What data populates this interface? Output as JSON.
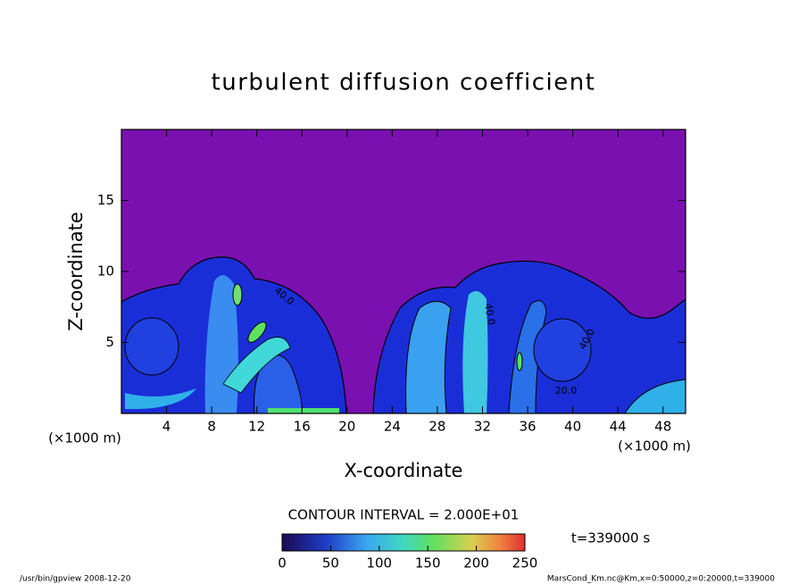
{
  "chart_data": {
    "type": "contour",
    "title": "turbulent diffusion coefficient",
    "x_label": "X-coordinate",
    "y_label": "Z-coordinate",
    "x_unit": "(×1000 m)",
    "y_unit": "(×1000 m)",
    "xlim": [
      0,
      50
    ],
    "ylim": [
      0,
      20
    ],
    "xticks": [
      4,
      8,
      12,
      16,
      20,
      24,
      28,
      32,
      36,
      40,
      44,
      48
    ],
    "yticks": [
      5,
      10,
      15
    ],
    "contour_interval": "CONTOUR INTERVAL = 2.000E+01",
    "time_label": "t=339000 s",
    "colorbar": {
      "lim": [
        0,
        250
      ],
      "ticks": [
        0,
        50,
        100,
        150,
        200,
        250
      ]
    },
    "contour_labels": [
      "40.0",
      "40.0",
      "40.0",
      "20.0"
    ]
  },
  "footer": {
    "left": "/usr/bin/gpview   2008-12-20",
    "right": "MarsCond_Km.nc@Km,x=0:50000,z=0:20000,t=339000"
  }
}
